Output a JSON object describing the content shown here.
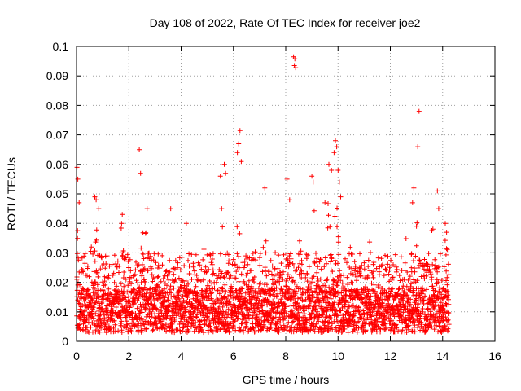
{
  "chart_data": {
    "type": "scatter",
    "title": "Day 108 of 2022, Rate Of TEC Index for receiver joe2",
    "xlabel": "GPS time / hours",
    "ylabel": "ROTI / TECUs",
    "xlim": [
      0,
      16
    ],
    "ylim": [
      0,
      0.1
    ],
    "x_ticks": [
      "0",
      "2",
      "4",
      "6",
      "8",
      "10",
      "12",
      "14",
      "16"
    ],
    "y_ticks": [
      "0",
      "0.01",
      "0.02",
      "0.03",
      "0.04",
      "0.05",
      "0.06",
      "0.07",
      "0.08",
      "0.09",
      "0.1"
    ],
    "grid": true,
    "marker": "plus",
    "color": "#ff0000",
    "data_extent_hours": [
      0,
      14.25
    ],
    "background_band": [
      0.003,
      0.03
    ],
    "outliers": [
      {
        "x": 0.02,
        "y": 0.059
      },
      {
        "x": 0.05,
        "y": 0.055
      },
      {
        "x": 0.1,
        "y": 0.047
      },
      {
        "x": 0.7,
        "y": 0.049
      },
      {
        "x": 0.75,
        "y": 0.048
      },
      {
        "x": 0.85,
        "y": 0.045
      },
      {
        "x": 1.75,
        "y": 0.043
      },
      {
        "x": 2.4,
        "y": 0.065
      },
      {
        "x": 2.45,
        "y": 0.057
      },
      {
        "x": 2.7,
        "y": 0.045
      },
      {
        "x": 3.6,
        "y": 0.045
      },
      {
        "x": 4.2,
        "y": 0.04
      },
      {
        "x": 5.5,
        "y": 0.056
      },
      {
        "x": 5.65,
        "y": 0.06
      },
      {
        "x": 5.7,
        "y": 0.057
      },
      {
        "x": 5.55,
        "y": 0.045
      },
      {
        "x": 6.15,
        "y": 0.064
      },
      {
        "x": 6.2,
        "y": 0.067
      },
      {
        "x": 6.25,
        "y": 0.0715
      },
      {
        "x": 6.3,
        "y": 0.061
      },
      {
        "x": 7.2,
        "y": 0.052
      },
      {
        "x": 8.05,
        "y": 0.055
      },
      {
        "x": 8.15,
        "y": 0.048
      },
      {
        "x": 8.3,
        "y": 0.0965
      },
      {
        "x": 8.35,
        "y": 0.0958
      },
      {
        "x": 8.33,
        "y": 0.0935
      },
      {
        "x": 8.38,
        "y": 0.0928
      },
      {
        "x": 9.0,
        "y": 0.056
      },
      {
        "x": 9.05,
        "y": 0.054
      },
      {
        "x": 9.5,
        "y": 0.047
      },
      {
        "x": 9.65,
        "y": 0.06
      },
      {
        "x": 9.75,
        "y": 0.058
      },
      {
        "x": 9.9,
        "y": 0.068
      },
      {
        "x": 9.95,
        "y": 0.066
      },
      {
        "x": 9.85,
        "y": 0.064
      },
      {
        "x": 10.0,
        "y": 0.058
      },
      {
        "x": 10.05,
        "y": 0.054
      },
      {
        "x": 10.1,
        "y": 0.049
      },
      {
        "x": 12.85,
        "y": 0.047
      },
      {
        "x": 12.9,
        "y": 0.052
      },
      {
        "x": 13.05,
        "y": 0.066
      },
      {
        "x": 13.1,
        "y": 0.078
      },
      {
        "x": 13.0,
        "y": 0.039
      },
      {
        "x": 13.8,
        "y": 0.051
      },
      {
        "x": 13.85,
        "y": 0.045
      },
      {
        "x": 14.1,
        "y": 0.04
      },
      {
        "x": 14.15,
        "y": 0.037
      }
    ],
    "activity_peaks": [
      {
        "x": 0.0,
        "level": 0.045
      },
      {
        "x": 0.5,
        "level": 0.036
      },
      {
        "x": 0.8,
        "level": 0.042
      },
      {
        "x": 1.3,
        "level": 0.03
      },
      {
        "x": 1.75,
        "level": 0.042
      },
      {
        "x": 2.5,
        "level": 0.04
      },
      {
        "x": 2.7,
        "level": 0.042
      },
      {
        "x": 3.2,
        "level": 0.035
      },
      {
        "x": 3.6,
        "level": 0.042
      },
      {
        "x": 4.3,
        "level": 0.03
      },
      {
        "x": 4.9,
        "level": 0.032
      },
      {
        "x": 5.6,
        "level": 0.045
      },
      {
        "x": 6.2,
        "level": 0.045
      },
      {
        "x": 6.8,
        "level": 0.04
      },
      {
        "x": 7.2,
        "level": 0.042
      },
      {
        "x": 7.6,
        "level": 0.036
      },
      {
        "x": 8.1,
        "level": 0.045
      },
      {
        "x": 8.5,
        "level": 0.038
      },
      {
        "x": 9.1,
        "level": 0.045
      },
      {
        "x": 9.6,
        "level": 0.048
      },
      {
        "x": 9.9,
        "level": 0.05
      },
      {
        "x": 10.5,
        "level": 0.035
      },
      {
        "x": 11.2,
        "level": 0.034
      },
      {
        "x": 11.8,
        "level": 0.032
      },
      {
        "x": 12.6,
        "level": 0.035
      },
      {
        "x": 13.0,
        "level": 0.042
      },
      {
        "x": 13.6,
        "level": 0.04
      },
      {
        "x": 14.1,
        "level": 0.037
      }
    ]
  }
}
